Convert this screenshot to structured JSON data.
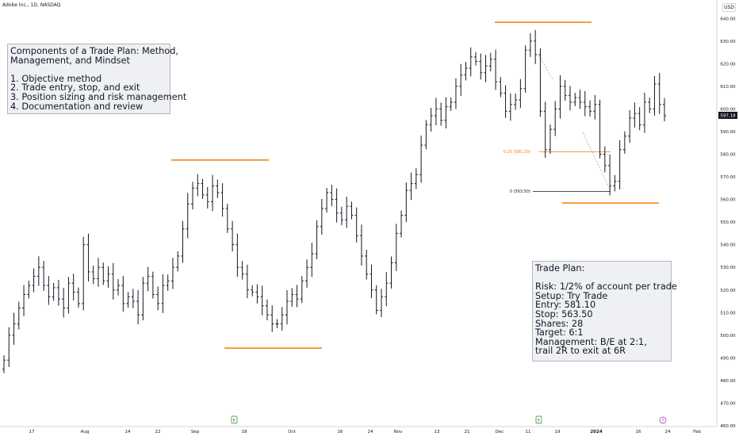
{
  "header": {
    "symbol": "Adobe Inc., 1D, NASDAQ",
    "currency": "USD"
  },
  "price_axis": {
    "ticks": [
      460,
      470,
      480,
      490,
      500,
      510,
      520,
      530,
      540,
      550,
      560,
      570,
      580,
      590,
      600,
      610,
      620,
      630,
      640
    ],
    "last_price": "597.18"
  },
  "time_axis": {
    "ticks": [
      "17",
      "Aug",
      "14",
      "22",
      "Sep",
      "18",
      "Oct",
      "16",
      "24",
      "Nov",
      "13",
      "21",
      "Dec",
      "11",
      "19",
      "2024",
      "16",
      "24",
      "Feb"
    ]
  },
  "fib": {
    "level_025": "0.25 (581.10)",
    "level_0": "0 (563.50)"
  },
  "annotations": {
    "components": [
      "Components of a Trade Plan: Method,",
      "Management, and Mindset",
      "",
      "1. Objective method",
      "2. Trade entry, stop, and exit",
      "3. Position sizing and risk management",
      "4. Documentation and review"
    ],
    "trade_plan": [
      "Trade Plan:",
      "",
      "Risk: 1/2% of account per trade",
      "Setup: Try Trade",
      "Entry: 581.10",
      "Stop: 563.50",
      "Shares: 28",
      "Target: 6:1",
      "Management: B/E at 2:1,",
      "trail 2R to exit at 6R"
    ]
  },
  "colors": {
    "accent": "#f57c00",
    "bars": "#131722",
    "price_label": "#131722"
  },
  "chart_data": {
    "type": "ohlc",
    "ylim": [
      460,
      645
    ],
    "title": "Adobe Inc., 1D, NASDAQ",
    "closes": [
      489,
      500,
      505,
      512,
      518,
      522,
      526,
      530,
      522,
      517,
      521,
      516,
      512,
      523,
      519,
      514,
      540,
      528,
      525,
      530,
      524,
      527,
      520,
      522,
      514,
      517,
      515,
      509,
      523,
      526,
      518,
      514,
      522,
      524,
      530,
      535,
      547,
      558,
      565,
      567,
      562,
      559,
      566,
      563,
      556,
      547,
      540,
      530,
      527,
      520,
      519,
      517,
      513,
      509,
      505,
      505,
      509,
      515,
      518,
      516,
      524,
      530,
      536,
      548,
      556,
      563,
      560,
      554,
      551,
      557,
      553,
      544,
      535,
      527,
      520,
      511,
      517,
      523,
      532,
      545,
      553,
      564,
      567,
      571,
      584,
      593,
      597,
      600,
      595,
      601,
      603,
      610,
      615,
      618,
      623,
      621,
      616,
      619,
      622,
      612,
      607,
      599,
      602,
      604,
      609,
      626,
      630,
      624,
      599,
      582,
      591,
      600,
      610,
      606,
      603,
      605,
      603,
      601,
      599,
      602,
      580,
      575,
      566,
      568,
      582,
      588,
      596,
      598,
      593,
      603,
      600,
      611,
      602,
      597
    ],
    "fib_levels": [
      {
        "label": "0.25",
        "value": 581.1
      },
      {
        "label": "0",
        "value": 563.5
      }
    ],
    "levels": [
      {
        "value": 577.4
      },
      {
        "value": 494.3
      },
      {
        "value": 638.3
      },
      {
        "value": 558.4
      }
    ]
  }
}
